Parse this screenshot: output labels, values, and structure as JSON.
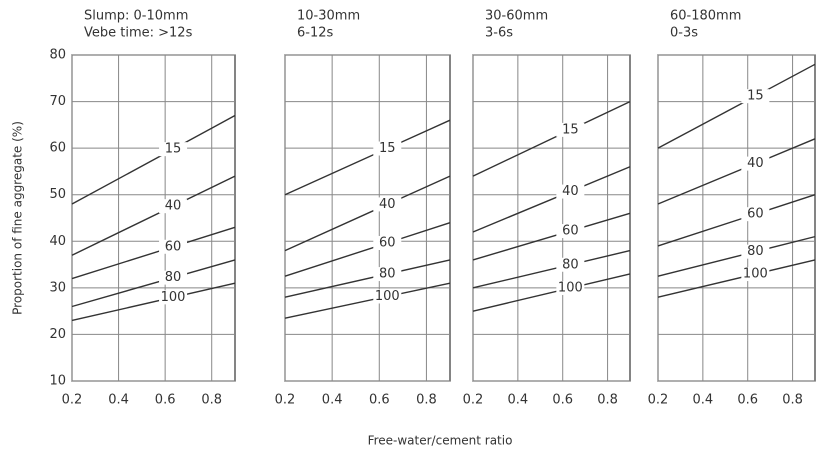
{
  "ylabel": "Proportion of fine aggregate (%)",
  "xlabel": "Free-water/cement ratio",
  "chart_data": [
    {
      "type": "line",
      "title": "Slump: 0-10mm",
      "subtitle": "Vebe time: >12s",
      "x": [
        0.2,
        0.9
      ],
      "xlim": [
        0.2,
        0.9
      ],
      "xticks": [
        0.2,
        0.4,
        0.6,
        0.8
      ],
      "ylim": [
        10,
        80
      ],
      "yticks": [
        10,
        20,
        30,
        40,
        50,
        60,
        70,
        80
      ],
      "ytick_labels": true,
      "grid": true,
      "color": "#333333",
      "series": [
        {
          "name": "15",
          "values": [
            48,
            67
          ]
        },
        {
          "name": "40",
          "values": [
            37,
            54
          ]
        },
        {
          "name": "60",
          "values": [
            32,
            43
          ]
        },
        {
          "name": "80",
          "values": [
            26,
            36
          ]
        },
        {
          "name": "100",
          "values": [
            23,
            31
          ]
        }
      ]
    },
    {
      "type": "line",
      "title": "10-30mm",
      "subtitle": "6-12s",
      "x": [
        0.2,
        0.9
      ],
      "xlim": [
        0.2,
        0.9
      ],
      "xticks": [
        0.2,
        0.4,
        0.6,
        0.8
      ],
      "ylim": [
        10,
        80
      ],
      "yticks": [
        10,
        20,
        30,
        40,
        50,
        60,
        70,
        80
      ],
      "ytick_labels": false,
      "grid": true,
      "color": "#333333",
      "series": [
        {
          "name": "15",
          "values": [
            50,
            66
          ]
        },
        {
          "name": "40",
          "values": [
            38,
            54
          ]
        },
        {
          "name": "60",
          "values": [
            32.5,
            44
          ]
        },
        {
          "name": "80",
          "values": [
            28,
            36
          ]
        },
        {
          "name": "100",
          "values": [
            23.5,
            31
          ]
        }
      ]
    },
    {
      "type": "line",
      "title": "30-60mm",
      "subtitle": "3-6s",
      "x": [
        0.2,
        0.9
      ],
      "xlim": [
        0.2,
        0.9
      ],
      "xticks": [
        0.2,
        0.4,
        0.6,
        0.8
      ],
      "ylim": [
        10,
        80
      ],
      "yticks": [
        10,
        20,
        30,
        40,
        50,
        60,
        70,
        80
      ],
      "ytick_labels": false,
      "grid": true,
      "color": "#333333",
      "series": [
        {
          "name": "15",
          "values": [
            54,
            70
          ]
        },
        {
          "name": "40",
          "values": [
            42,
            56
          ]
        },
        {
          "name": "60",
          "values": [
            36,
            46
          ]
        },
        {
          "name": "80",
          "values": [
            30,
            38
          ]
        },
        {
          "name": "100",
          "values": [
            25,
            33
          ]
        }
      ]
    },
    {
      "type": "line",
      "title": "60-180mm",
      "subtitle": "0-3s",
      "x": [
        0.2,
        0.9
      ],
      "xlim": [
        0.2,
        0.9
      ],
      "xticks": [
        0.2,
        0.4,
        0.6,
        0.8
      ],
      "ylim": [
        10,
        80
      ],
      "yticks": [
        10,
        20,
        30,
        40,
        50,
        60,
        70,
        80
      ],
      "ytick_labels": false,
      "grid": true,
      "color": "#333333",
      "series": [
        {
          "name": "15",
          "values": [
            60,
            78
          ]
        },
        {
          "name": "40",
          "values": [
            48,
            62
          ]
        },
        {
          "name": "60",
          "values": [
            39,
            50
          ]
        },
        {
          "name": "80",
          "values": [
            32.5,
            41
          ]
        },
        {
          "name": "100",
          "values": [
            28,
            36
          ]
        }
      ]
    }
  ]
}
